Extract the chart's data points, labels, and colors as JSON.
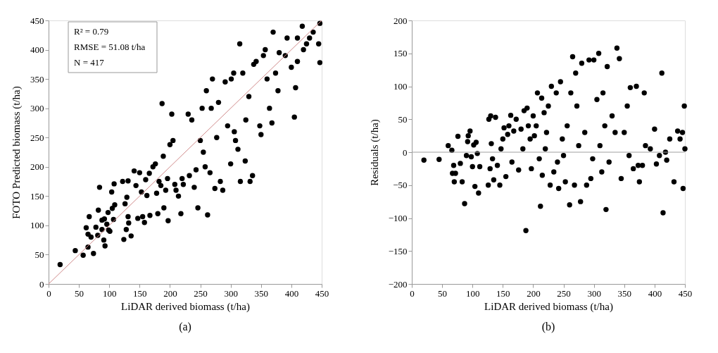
{
  "chart_data": [
    {
      "type": "scatter",
      "title": "(a)",
      "xlabel": "LiDAR derived biomass  (t/ha)",
      "ylabel": "FOTO Predicted biomass  (t/ha)",
      "xlim": [
        0,
        450
      ],
      "ylim": [
        0,
        450
      ],
      "xticks": [
        0,
        50,
        100,
        150,
        200,
        250,
        300,
        350,
        400,
        450
      ],
      "yticks": [
        0,
        50,
        100,
        150,
        200,
        250,
        300,
        350,
        400,
        450
      ],
      "grid": false,
      "marker": "circle",
      "annotations": [
        "R² = 0.79",
        "RMSE = 51.08 t/ha",
        "N = 417"
      ],
      "series": [
        {
          "color": "#000000",
          "x": [
            19,
            44,
            57,
            65,
            74,
            62,
            65,
            67,
            70,
            78,
            81,
            82,
            84,
            88,
            88,
            92,
            91,
            93,
            96,
            98,
            99,
            101,
            104,
            105,
            107,
            108,
            109,
            122,
            124,
            126,
            128,
            129,
            131,
            131,
            132,
            136,
            141,
            144,
            147,
            150,
            153,
            155,
            158,
            160,
            162,
            166,
            167,
            172,
            176,
            178,
            180,
            182,
            185,
            187,
            189,
            190,
            193,
            196,
            197,
            200,
            203,
            205,
            208,
            210,
            214,
            218,
            220,
            222,
            230,
            232,
            236,
            240,
            243,
            246,
            250,
            253,
            255,
            258,
            260,
            262,
            266,
            268,
            270,
            274,
            277,
            280,
            283,
            287,
            291,
            295,
            300,
            301,
            305,
            306,
            308,
            312,
            315,
            316,
            320,
            324,
            325,
            330,
            332,
            336,
            338,
            342,
            348,
            350,
            354,
            357,
            360,
            364,
            368,
            370,
            374,
            378,
            380,
            390,
            393,
            400,
            405,
            407,
            410,
            418,
            420,
            425,
            430,
            436,
            447,
            447,
            445,
            410
          ],
          "values": [
            33,
            57,
            49,
            63,
            52,
            96,
            85,
            115,
            80,
            97,
            83,
            126,
            165,
            93,
            109,
            111,
            75,
            65,
            102,
            122,
            92,
            90,
            157,
            129,
            110,
            171,
            135,
            175,
            76,
            137,
            93,
            148,
            176,
            115,
            104,
            82,
            193,
            168,
            112,
            190,
            157,
            115,
            105,
            178,
            151,
            189,
            117,
            200,
            205,
            155,
            120,
            175,
            168,
            308,
            218,
            130,
            160,
            180,
            108,
            238,
            290,
            245,
            170,
            160,
            150,
            120,
            180,
            170,
            290,
            185,
            280,
            165,
            195,
            130,
            245,
            300,
            225,
            200,
            330,
            118,
            190,
            300,
            350,
            163,
            250,
            310,
            175,
            160,
            345,
            270,
            205,
            350,
            360,
            260,
            245,
            230,
            410,
            175,
            360,
            210,
            280,
            320,
            175,
            185,
            375,
            380,
            270,
            255,
            390,
            400,
            350,
            300,
            275,
            430,
            360,
            330,
            395,
            390,
            420,
            370,
            285,
            335,
            420,
            440,
            400,
            410,
            420,
            430,
            445,
            378,
            410,
            380
          ]
        },
        {
          "type": "line",
          "color": "#d08a8a",
          "marker": "none",
          "line_style": "solid",
          "x": [
            0,
            450
          ],
          "values": [
            0,
            450
          ]
        }
      ]
    },
    {
      "type": "scatter",
      "title": "(b)",
      "xlabel": "LiDAR derived biomass  (t/ha)",
      "ylabel": "Residuals (t/ha)",
      "xlim": [
        0,
        450
      ],
      "ylim": [
        -200,
        200
      ],
      "xticks": [
        0,
        50,
        100,
        150,
        200,
        250,
        300,
        350,
        400,
        450
      ],
      "yticks": [
        -200,
        -150,
        -100,
        -50,
        0,
        50,
        100,
        150,
        200
      ],
      "grid": false,
      "marker": "circle",
      "ref_lines": [
        {
          "axis": "y",
          "value": 0,
          "color": "#a0a0a0"
        }
      ],
      "series": [
        {
          "color": "#000000",
          "x": [
            20,
            45,
            60,
            66,
            67,
            69,
            70,
            72,
            76,
            80,
            83,
            87,
            90,
            92,
            93,
            96,
            98,
            100,
            102,
            104,
            106,
            108,
            110,
            112,
            126,
            127,
            129,
            130,
            131,
            133,
            135,
            138,
            141,
            145,
            147,
            150,
            152,
            155,
            158,
            160,
            163,
            165,
            168,
            172,
            176,
            180,
            183,
            185,
            188,
            190,
            192,
            195,
            197,
            200,
            202,
            205,
            207,
            210,
            212,
            214,
            215,
            218,
            220,
            222,
            225,
            228,
            230,
            234,
            238,
            240,
            242,
            245,
            248,
            250,
            253,
            256,
            260,
            262,
            265,
            268,
            270,
            272,
            275,
            278,
            280,
            285,
            288,
            292,
            295,
            298,
            300,
            305,
            308,
            310,
            313,
            315,
            318,
            320,
            322,
            325,
            330,
            335,
            338,
            342,
            345,
            350,
            355,
            358,
            360,
            365,
            370,
            373,
            375,
            380,
            383,
            385,
            393,
            400,
            403,
            408,
            412,
            414,
            418,
            420,
            425,
            432,
            438,
            442,
            447,
            449,
            450,
            446
          ],
          "values": [
            -12,
            -11,
            10,
            3,
            -32,
            -20,
            -45,
            -32,
            24,
            -17,
            -45,
            -78,
            -5,
            16,
            25,
            32,
            -7,
            -22,
            11,
            -52,
            15,
            -2,
            -62,
            -22,
            -50,
            50,
            -25,
            55,
            13,
            -10,
            -42,
            53,
            -20,
            -50,
            5,
            20,
            37,
            -37,
            27,
            40,
            56,
            -15,
            32,
            50,
            -27,
            35,
            5,
            63,
            -119,
            67,
            40,
            20,
            -25,
            55,
            25,
            40,
            90,
            -10,
            -82,
            82,
            -35,
            60,
            5,
            30,
            70,
            -50,
            100,
            -30,
            90,
            -15,
            -55,
            107,
            20,
            -5,
            -45,
            40,
            -80,
            90,
            145,
            -50,
            120,
            70,
            10,
            -75,
            135,
            30,
            -50,
            140,
            -40,
            -10,
            140,
            80,
            150,
            10,
            -30,
            90,
            40,
            -87,
            130,
            -15,
            55,
            30,
            158,
            142,
            -40,
            30,
            70,
            -5,
            98,
            -25,
            100,
            -20,
            -45,
            -20,
            90,
            10,
            5,
            35,
            -18,
            -5,
            120,
            -92,
            0,
            -12,
            20,
            -45,
            32,
            20,
            -55,
            70,
            5,
            30
          ]
        }
      ]
    }
  ]
}
